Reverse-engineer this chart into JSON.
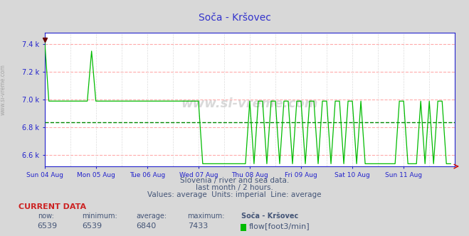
{
  "title": "Soča - Kršovec",
  "bg_color": "#d8d8d8",
  "plot_bg_color": "#ffffff",
  "line_color": "#00bb00",
  "avg_line_color": "#008800",
  "grid_h_color": "#ffaaaa",
  "grid_v_color": "#dddddd",
  "axis_color": "#2222cc",
  "title_color": "#3333cc",
  "ytick_labels": [
    "6.6 k",
    "6.8 k",
    "7.0 k",
    "7.2 k",
    "7.4 k"
  ],
  "ytick_vals": [
    6600,
    6800,
    7000,
    7200,
    7400
  ],
  "ymin": 6520,
  "ymax": 7480,
  "avg_value": 6840,
  "max_value": 7433,
  "min_value": 6539,
  "now_value": 6539,
  "xtick_labels": [
    "Sun 04 Aug",
    "Mon 05 Aug",
    "Tue 06 Aug",
    "Wed 07 Aug",
    "Thu 08 Aug",
    "Fri 09 Aug",
    "Sat 10 Aug",
    "Sun 11 Aug"
  ],
  "subtitle1": "Slovenia / river and sea data.",
  "subtitle2": "last month / 2 hours.",
  "subtitle3": "Values: average  Units: imperial  Line: average",
  "footer_label": "CURRENT DATA",
  "col_now": "now:",
  "col_min": "minimum:",
  "col_avg": "average:",
  "col_max": "maximum:",
  "col_name": "Soča - Kršovec",
  "col_flow": "flow[foot3/min]",
  "watermark": "www.si-vreme.com"
}
